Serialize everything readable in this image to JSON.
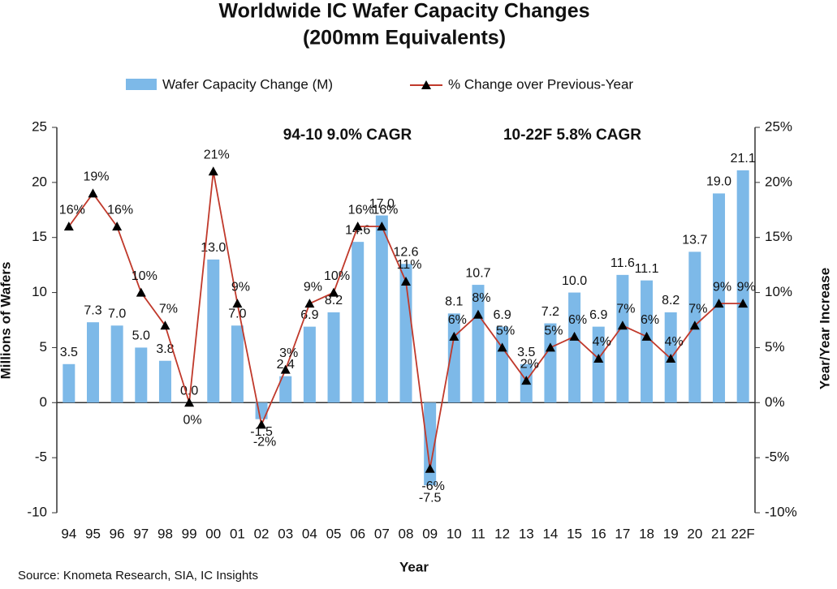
{
  "chart_data": {
    "type": "bar-line",
    "title": "Worldwide IC Wafer Capacity Changes",
    "subtitle": "(200mm Equivalents)",
    "annotations": [
      "94-10 9.0% CAGR",
      "10-22F 5.8% CAGR"
    ],
    "x_label": "Year",
    "y_label": "Millions of Wafers",
    "y2_label": "Year/Year Increase",
    "source": "Source: Knometa Research, SIA, IC Insights",
    "categories": [
      "94",
      "95",
      "96",
      "97",
      "98",
      "99",
      "00",
      "01",
      "02",
      "03",
      "04",
      "05",
      "06",
      "07",
      "08",
      "09",
      "10",
      "11",
      "12",
      "13",
      "14",
      "15",
      "16",
      "17",
      "18",
      "19",
      "20",
      "21",
      "22F"
    ],
    "series": [
      {
        "name": "Wafer Capacity Change (M)",
        "color": "#7db9e8",
        "values": [
          3.5,
          7.3,
          7.0,
          5.0,
          3.8,
          0.0,
          13.0,
          7.0,
          -1.5,
          2.4,
          6.9,
          8.2,
          14.6,
          17.0,
          12.6,
          -7.5,
          8.1,
          10.7,
          6.9,
          3.5,
          7.2,
          10.0,
          6.9,
          11.6,
          11.1,
          8.2,
          13.7,
          19.0,
          21.1
        ],
        "value_labels": [
          "3.5",
          "7.3",
          "7.0",
          "5.0",
          "3.8",
          "0.0",
          "13.0",
          "7.0",
          "-1.5",
          "2.4",
          "6.9",
          "8.2",
          "14.6",
          "17.0",
          "12.6",
          "-7.5",
          "8.1",
          "10.7",
          "6.9",
          "3.5",
          "7.2",
          "10.0",
          "6.9",
          "11.6",
          "11.1",
          "8.2",
          "13.7",
          "19.0",
          "21.1"
        ]
      },
      {
        "name": "% Change over Previous-Year",
        "color": "#c0392b",
        "marker_color": "#000000",
        "axis": "y2",
        "values": [
          16,
          19,
          16,
          10,
          7,
          0,
          21,
          9,
          -2,
          3,
          9,
          10,
          16,
          16,
          11,
          -6,
          6,
          8,
          5,
          2,
          5,
          6,
          4,
          7,
          6,
          4,
          7,
          9,
          9
        ],
        "value_labels": [
          "16%",
          "19%",
          "16%",
          "10%",
          "7%",
          "0%",
          "21%",
          "9%",
          "-2%",
          "3%",
          "9%",
          "10%",
          "16%",
          "16%",
          "11%",
          "-6%",
          "6%",
          "8%",
          "5%",
          "2%",
          "5%",
          "6%",
          "4%",
          "7%",
          "6%",
          "4%",
          "7%",
          "9%",
          "9%"
        ]
      }
    ],
    "ylim": [
      -10,
      25
    ],
    "yticks": [
      -10,
      -5,
      0,
      5,
      10,
      15,
      20,
      25
    ],
    "y2lim": [
      -10,
      25
    ],
    "y2ticks": [
      {
        "value": -10,
        "label": "-10%"
      },
      {
        "value": -5,
        "label": "-5%"
      },
      {
        "value": 0,
        "label": "0%"
      },
      {
        "value": 5,
        "label": "5%"
      },
      {
        "value": 10,
        "label": "10%"
      },
      {
        "value": 15,
        "label": "15%"
      },
      {
        "value": 20,
        "label": "20%"
      },
      {
        "value": 25,
        "label": "25%"
      }
    ],
    "legend": "top"
  }
}
